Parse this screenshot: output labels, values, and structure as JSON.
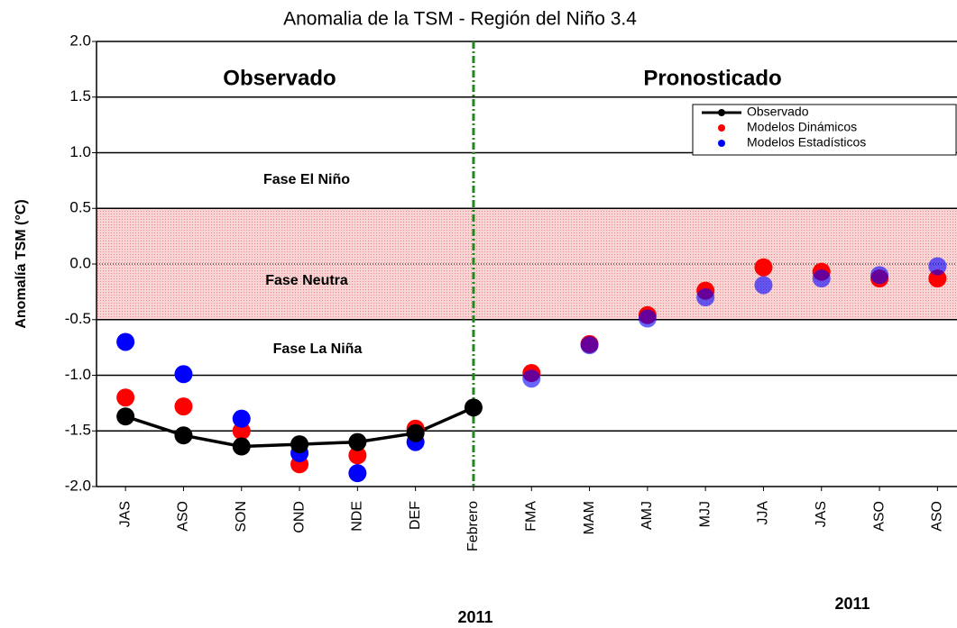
{
  "chart_data": {
    "type": "scatter-line",
    "title": "Anomalia de la TSM - Región del Niño 3.4",
    "y_label": "Anomalía  TSM (°C)",
    "annotations": [
      "Observado",
      "Pronosticado",
      "Fase El Niño",
      "Fase Neutra",
      "Fase La Niña",
      "2011",
      "2011"
    ],
    "categories": [
      "JAS",
      "ASO",
      "SON",
      "OND",
      "NDE",
      "DEF",
      "Febrero",
      "FMA",
      "MAM",
      "AMJ",
      "MJJ",
      "JJA",
      "JAS",
      "ASO",
      "ASO"
    ],
    "series": [
      {
        "name": "Observado",
        "color": "#000000",
        "values": [
          -1.37,
          -1.54,
          -1.64,
          -1.62,
          -1.6,
          -1.52,
          -1.29,
          null,
          null,
          null,
          null,
          null,
          null,
          null,
          null
        ]
      },
      {
        "name": "Modelos Dinámicos",
        "color": "#ff0000",
        "values": [
          -1.2,
          -1.28,
          -1.5,
          -1.8,
          -1.72,
          -1.48,
          null,
          -0.98,
          -0.72,
          -0.46,
          -0.24,
          -0.03,
          -0.07,
          -0.13,
          -0.13
        ]
      },
      {
        "name": "Modelos Estadísticos",
        "color": "#0000ff",
        "values": [
          -0.7,
          -0.99,
          -1.39,
          -1.7,
          -1.88,
          -1.6,
          null,
          -1.03,
          -0.73,
          -0.49,
          -0.3,
          -0.19,
          -0.13,
          -0.1,
          -0.02
        ]
      }
    ],
    "neutral_band": [
      -0.5,
      0.5
    ],
    "ylim": [
      -2.0,
      2.0
    ],
    "yticks": [
      {
        "value": -2,
        "label": "-2.0"
      },
      -1.5,
      {
        "value": -1,
        "label": "-1.0"
      },
      -0.5,
      {
        "value": 0,
        "label": "0.0"
      },
      0.5,
      {
        "value": 1,
        "label": "1.0"
      },
      1.5,
      {
        "value": 2,
        "label": "2.0"
      }
    ],
    "grid": true
  }
}
